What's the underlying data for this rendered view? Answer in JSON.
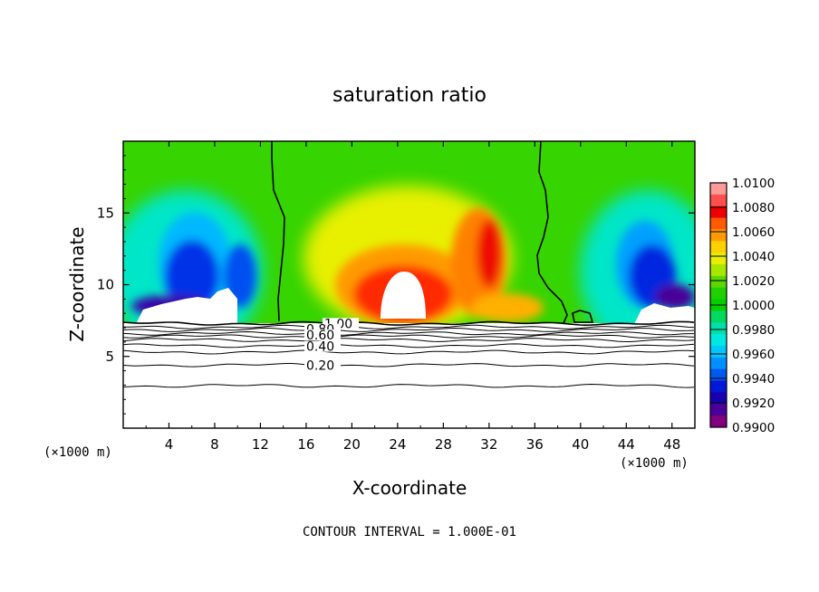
{
  "chart_data": {
    "type": "heatmap",
    "title": "saturation ratio",
    "xlabel": "X-coordinate",
    "ylabel": "Z-coordinate",
    "x_unit_left": "(×1000 m)",
    "x_unit_right": "(×1000 m)",
    "xlim": [
      0,
      50
    ],
    "ylim": [
      0,
      20
    ],
    "x_ticks": [
      4,
      8,
      12,
      16,
      20,
      24,
      28,
      32,
      36,
      40,
      44,
      48
    ],
    "y_ticks": [
      5,
      10,
      15
    ],
    "footer": "CONTOUR INTERVAL = 1.000E-01",
    "colorbar": {
      "levels": [
        "1.0100",
        "1.0080",
        "1.0060",
        "1.0040",
        "1.0020",
        "1.0000",
        "0.9980",
        "0.9960",
        "0.9940",
        "0.9920",
        "0.9900"
      ],
      "colors": [
        "#ff9a9a",
        "#ff5050",
        "#ee0000",
        "#ff5a00",
        "#ff9a00",
        "#ffd000",
        "#e6f000",
        "#a8e800",
        "#5ad800",
        "#20d000",
        "#00d000",
        "#00d860",
        "#00e0a8",
        "#00e8e0",
        "#00c8ff",
        "#0090ff",
        "#0058f0",
        "#0018d8",
        "#1800b0",
        "#4a0098",
        "#800080"
      ]
    },
    "contour_labels": [
      {
        "text": "1.00",
        "z": 7.3
      },
      {
        "text": "0.80",
        "z": 6.9
      },
      {
        "text": "0.60",
        "z": 6.5
      },
      {
        "text": "0.40",
        "z": 5.7
      },
      {
        "text": "0.20",
        "z": 4.4
      }
    ],
    "contour_levels_z": [
      7.3,
      7.05,
      6.85,
      6.6,
      6.4,
      6.15,
      5.75,
      5.3,
      4.4,
      2.95
    ],
    "saturation_boundary_x": [
      13.2,
      37.5
    ],
    "cloud_base_z": 7.3
  }
}
